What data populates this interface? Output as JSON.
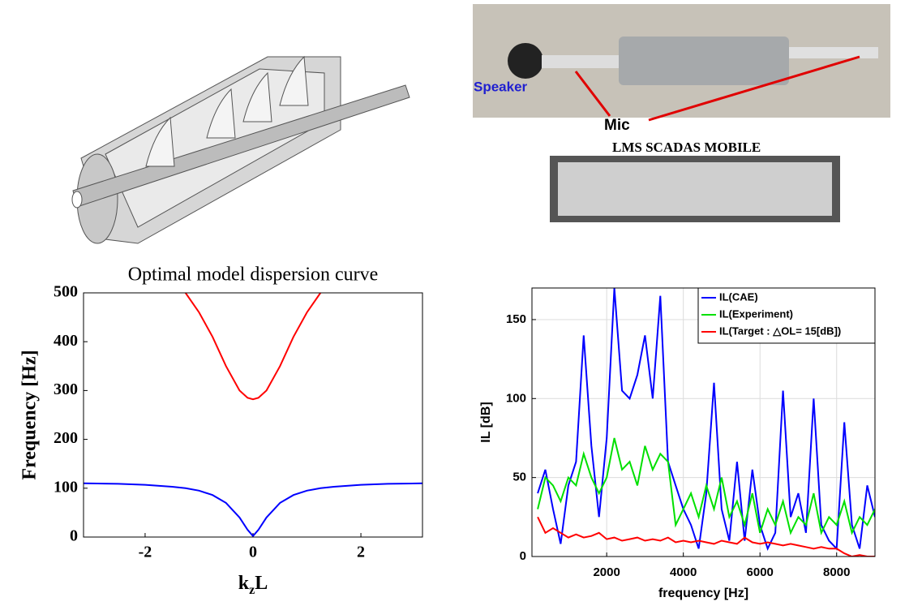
{
  "photo_labels": {
    "speaker": "Speaker",
    "mic": "Mic",
    "daq": "LMS SCADAS MOBILE"
  },
  "chart_data": [
    {
      "type": "line",
      "title": "Optimal model dispersion curve",
      "xlabel": [
        "k",
        "z",
        "L"
      ],
      "ylabel": "Frequency [Hz]",
      "x": [
        -3.1416,
        -2.5,
        -2,
        -1.5,
        -1.25,
        -1,
        -0.75,
        -0.5,
        -0.25,
        -0.1,
        0,
        0.1,
        0.25,
        0.5,
        0.75,
        1,
        1.25,
        1.5,
        2,
        2.5,
        3.1416
      ],
      "series": [
        {
          "color": "#ff0000",
          "values": [
            null,
            null,
            null,
            null,
            500,
            460,
            410,
            350,
            300,
            285,
            282,
            285,
            300,
            350,
            410,
            460,
            500,
            null,
            null,
            null,
            null
          ]
        },
        {
          "color": "#0000ff",
          "values": [
            110,
            109,
            107,
            103,
            100,
            95,
            86,
            70,
            40,
            15,
            2,
            15,
            40,
            70,
            86,
            95,
            100,
            103,
            107,
            109,
            110
          ]
        }
      ],
      "xlim": [
        -3.1416,
        3.1416
      ],
      "xticks": [
        -2,
        0,
        2
      ],
      "ylim": [
        0,
        500
      ],
      "yticks": [
        0,
        100,
        200,
        300,
        400,
        500
      ],
      "grid": false
    },
    {
      "type": "line",
      "xlabel": "frequency [Hz]",
      "ylabel": "IL [dB]",
      "x": [
        200,
        400,
        600,
        800,
        1000,
        1200,
        1400,
        1600,
        1800,
        2000,
        2200,
        2400,
        2600,
        2800,
        3000,
        3200,
        3400,
        3600,
        3800,
        4000,
        4200,
        4400,
        4600,
        4800,
        5000,
        5200,
        5400,
        5600,
        5800,
        6000,
        6200,
        6400,
        6600,
        6800,
        7000,
        7200,
        7400,
        7600,
        7800,
        8000,
        8200,
        8400,
        8600,
        8800,
        9000
      ],
      "series": [
        {
          "name": "IL(CAE)",
          "color": "#0000ff",
          "values": [
            40,
            55,
            30,
            8,
            45,
            60,
            140,
            70,
            25,
            75,
            170,
            105,
            100,
            115,
            140,
            100,
            165,
            60,
            45,
            30,
            20,
            5,
            40,
            110,
            30,
            10,
            60,
            10,
            55,
            20,
            5,
            15,
            105,
            25,
            40,
            15,
            100,
            20,
            10,
            5,
            85,
            20,
            5,
            45,
            25
          ]
        },
        {
          "name": "IL(Experiment)",
          "color": "#00e000",
          "values": [
            30,
            50,
            45,
            35,
            50,
            45,
            65,
            50,
            40,
            50,
            75,
            55,
            60,
            45,
            70,
            55,
            65,
            60,
            20,
            30,
            40,
            25,
            45,
            30,
            50,
            25,
            35,
            20,
            40,
            15,
            30,
            20,
            35,
            15,
            25,
            20,
            40,
            15,
            25,
            20,
            35,
            15,
            25,
            20,
            30
          ]
        },
        {
          "name": "IL(Target : △OL= 15[dB])",
          "color": "#ff0000",
          "values": [
            25,
            15,
            18,
            15,
            12,
            14,
            12,
            13,
            15,
            11,
            12,
            10,
            11,
            12,
            10,
            11,
            10,
            12,
            9,
            10,
            9,
            10,
            9,
            8,
            10,
            9,
            8,
            12,
            9,
            8,
            9,
            8,
            7,
            8,
            7,
            6,
            5,
            6,
            5,
            5,
            2,
            0,
            1,
            0,
            0
          ]
        }
      ],
      "xlim": [
        50,
        9000
      ],
      "xticks": [
        2000,
        4000,
        6000,
        8000
      ],
      "ylim": [
        0,
        170
      ],
      "yticks": [
        0,
        50,
        100,
        150
      ],
      "grid": true,
      "legend": "upper right"
    }
  ]
}
